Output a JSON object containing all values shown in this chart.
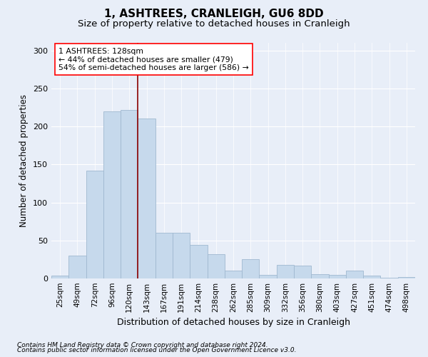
{
  "title": "1, ASHTREES, CRANLEIGH, GU6 8DD",
  "subtitle": "Size of property relative to detached houses in Cranleigh",
  "xlabel": "Distribution of detached houses by size in Cranleigh",
  "ylabel": "Number of detached properties",
  "categories": [
    "25sqm",
    "49sqm",
    "72sqm",
    "96sqm",
    "120sqm",
    "143sqm",
    "167sqm",
    "191sqm",
    "214sqm",
    "238sqm",
    "262sqm",
    "285sqm",
    "309sqm",
    "332sqm",
    "356sqm",
    "380sqm",
    "403sqm",
    "427sqm",
    "451sqm",
    "474sqm",
    "498sqm"
  ],
  "values": [
    4,
    30,
    142,
    220,
    222,
    210,
    60,
    60,
    44,
    32,
    10,
    25,
    5,
    18,
    17,
    6,
    5,
    10,
    4,
    1,
    2
  ],
  "bar_color": "#c6d9ec",
  "bar_edge_color": "#a0b8d0",
  "vline_x_index": 4.5,
  "vline_color": "#8b0000",
  "annotation_line1": "1 ASHTREES: 128sqm",
  "annotation_line2": "← 44% of detached houses are smaller (479)",
  "annotation_line3": "54% of semi-detached houses are larger (586) →",
  "ylim": [
    0,
    310
  ],
  "yticks": [
    0,
    50,
    100,
    150,
    200,
    250,
    300
  ],
  "background_color": "#e8eef8",
  "grid_color": "#ffffff",
  "footer_line1": "Contains HM Land Registry data © Crown copyright and database right 2024.",
  "footer_line2": "Contains public sector information licensed under the Open Government Licence v3.0."
}
